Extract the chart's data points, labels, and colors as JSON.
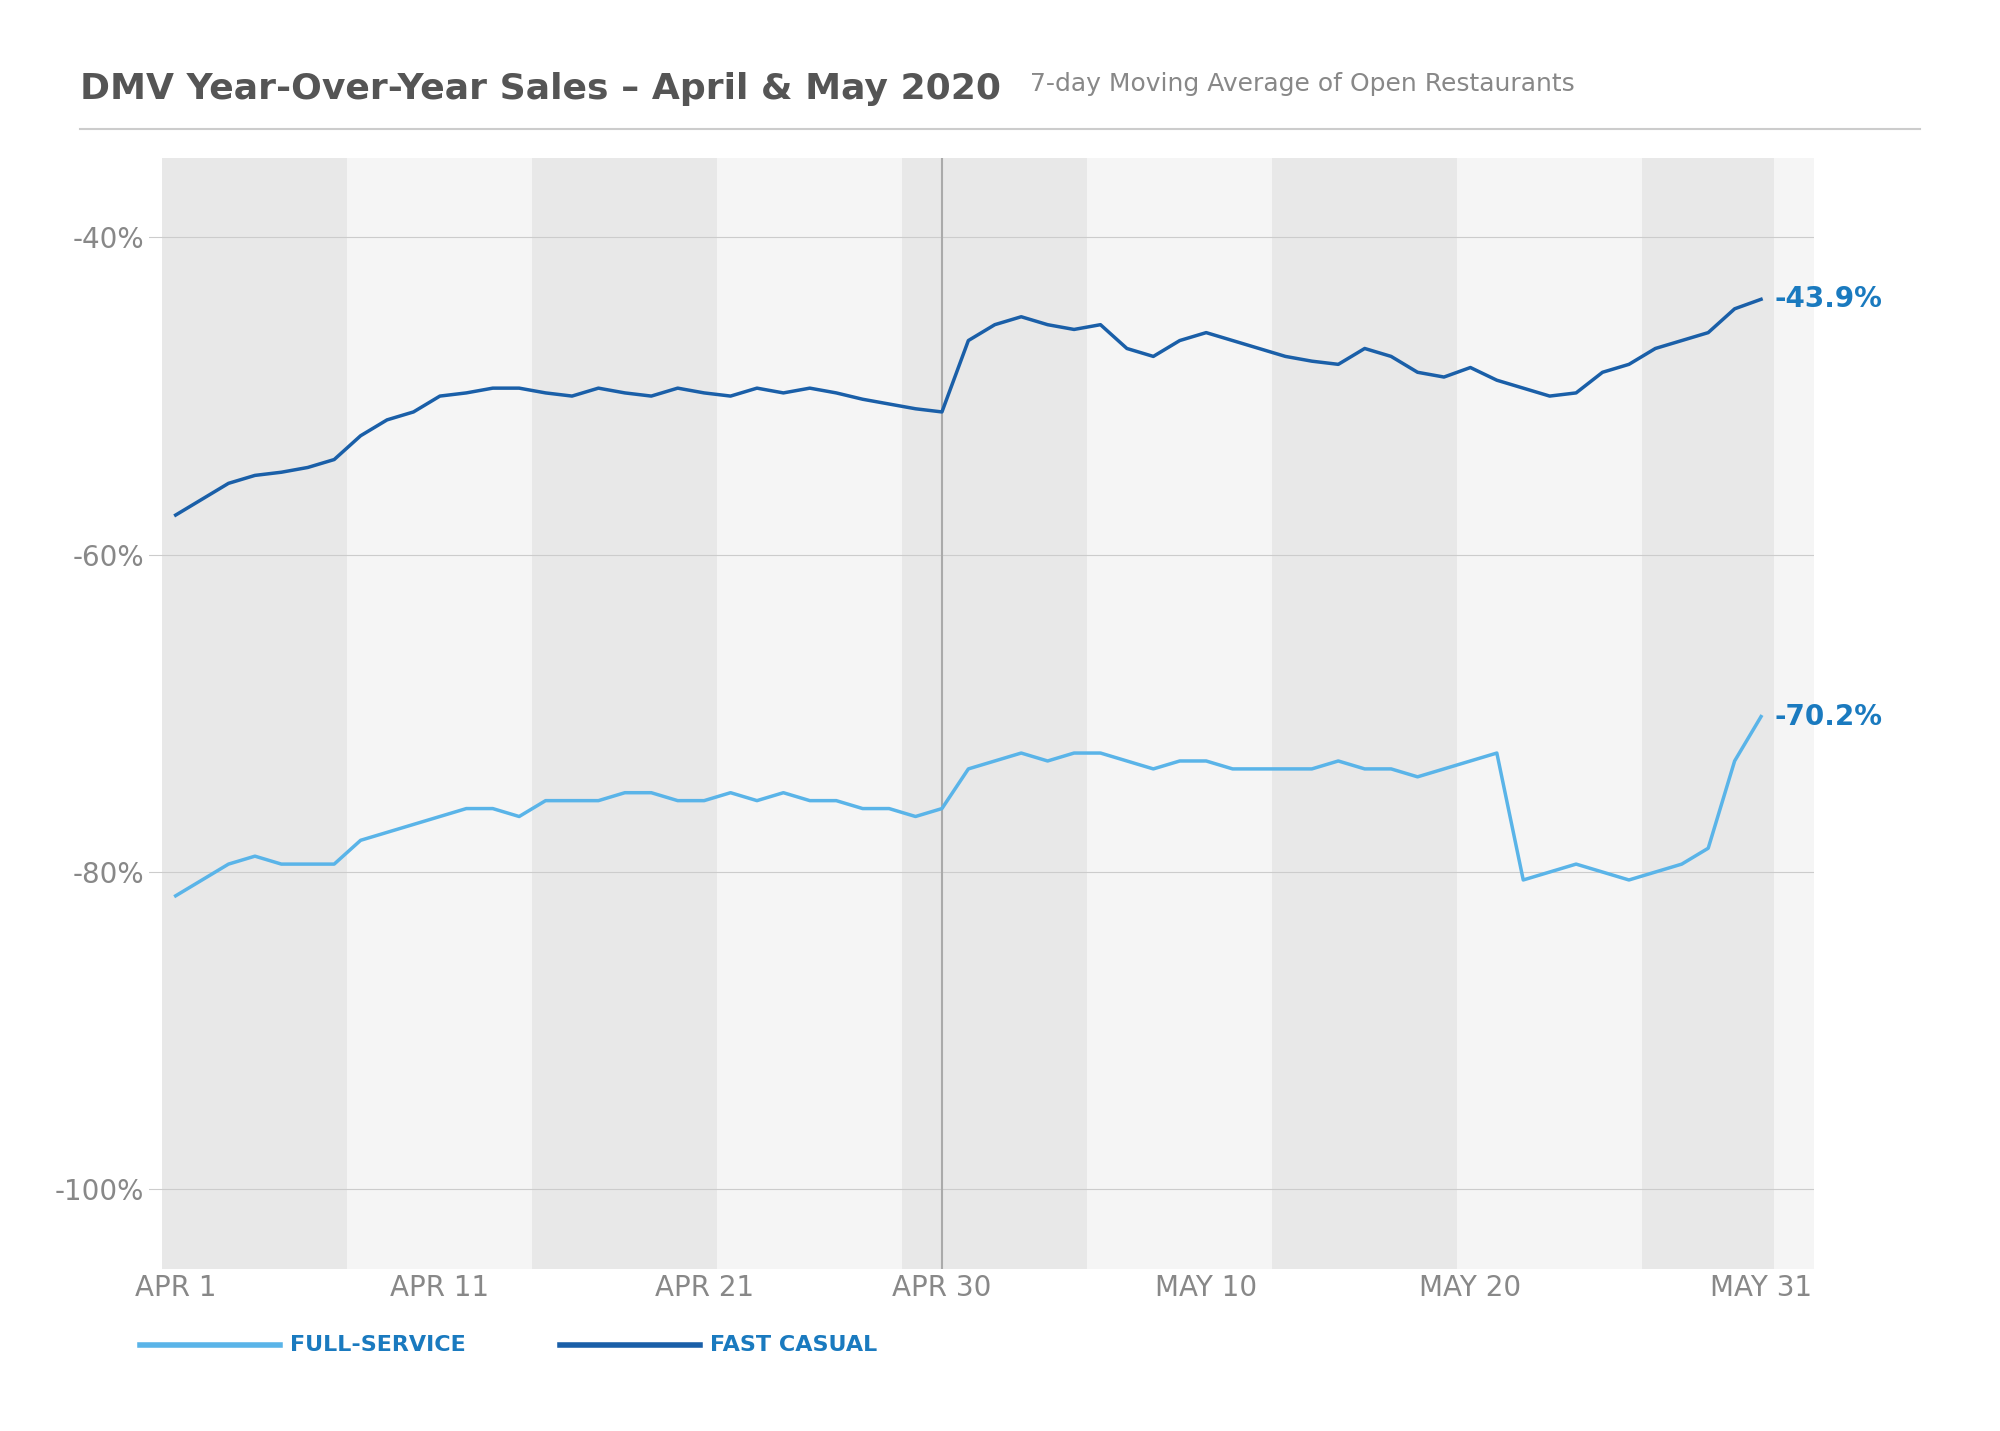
{
  "title_bold": "DMV Year-Over-Year Sales – April & May 2020",
  "title_subtitle": "7-day Moving Average of Open Restaurants",
  "background_color": "#ffffff",
  "plot_bg_color": "#ffffff",
  "stripe_colors": [
    "#e8e8e8",
    "#f5f5f5"
  ],
  "fast_casual_color": "#1a5fa8",
  "full_service_color": "#5ab4e8",
  "label_color": "#1a7abf",
  "ylim": [
    -105,
    -35
  ],
  "yticks": [
    -40,
    -60,
    -80,
    -100
  ],
  "ytick_labels": [
    "-40%",
    "-60%",
    "-80%",
    "-100%"
  ],
  "end_label_fast_casual": "-43.9%",
  "end_label_full_service": "-70.2%",
  "divider_x": 29,
  "fast_casual_data": [
    -57.5,
    -56.5,
    -55.5,
    -55.0,
    -54.8,
    -54.5,
    -54.0,
    -52.5,
    -51.5,
    -51.0,
    -50.0,
    -49.8,
    -49.5,
    -49.5,
    -49.8,
    -50.0,
    -49.5,
    -49.8,
    -50.0,
    -49.5,
    -49.8,
    -50.0,
    -49.5,
    -49.8,
    -49.5,
    -49.8,
    -50.2,
    -50.5,
    -50.8,
    -51.0,
    -46.5,
    -45.5,
    -45.0,
    -45.5,
    -45.8,
    -45.5,
    -47.0,
    -47.5,
    -46.5,
    -46.0,
    -46.5,
    -47.0,
    -47.5,
    -47.8,
    -48.0,
    -47.0,
    -47.5,
    -48.5,
    -48.8,
    -48.2,
    -49.0,
    -49.5,
    -50.0,
    -49.8,
    -48.5,
    -48.0,
    -47.0,
    -46.5,
    -46.0,
    -44.5,
    -43.9
  ],
  "full_service_data": [
    -81.5,
    -80.5,
    -79.5,
    -79.0,
    -79.5,
    -79.5,
    -79.5,
    -78.0,
    -77.5,
    -77.0,
    -76.5,
    -76.0,
    -76.0,
    -76.5,
    -75.5,
    -75.5,
    -75.5,
    -75.0,
    -75.0,
    -75.5,
    -75.5,
    -75.0,
    -75.5,
    -75.0,
    -75.5,
    -75.5,
    -76.0,
    -76.0,
    -76.5,
    -76.0,
    -73.5,
    -73.0,
    -72.5,
    -73.0,
    -72.5,
    -72.5,
    -73.0,
    -73.5,
    -73.0,
    -73.0,
    -73.5,
    -73.5,
    -73.5,
    -73.5,
    -73.0,
    -73.5,
    -73.5,
    -74.0,
    -73.5,
    -73.0,
    -72.5,
    -80.5,
    -80.0,
    -79.5,
    -80.0,
    -80.5,
    -80.0,
    -79.5,
    -78.5,
    -73.0,
    -70.2
  ],
  "xtick_positions": [
    0,
    10,
    20,
    29,
    39,
    49,
    60
  ],
  "xtick_labels": [
    "APR 1",
    "APR 11",
    "APR 21",
    "APR 30",
    "MAY 10",
    "MAY 20",
    "MAY 31"
  ],
  "n_days": 61,
  "legend_full_service_color": "#5ab4e8",
  "legend_fast_casual_color": "#1a5fa8"
}
